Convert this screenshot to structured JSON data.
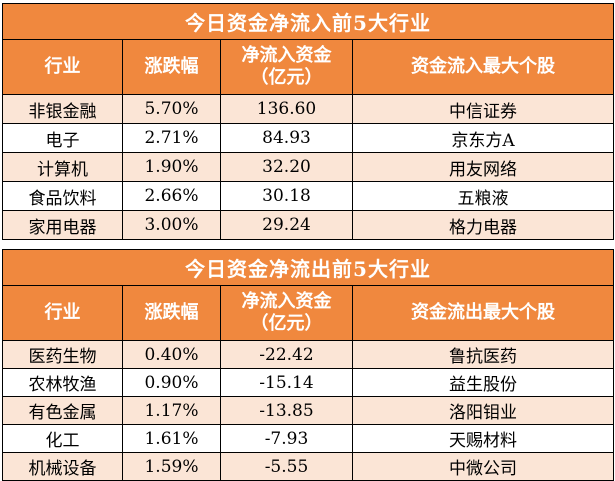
{
  "colors": {
    "header_orange": "#F0883E",
    "row_peach": "#FBE5D6",
    "row_white": "#FFFFFF",
    "border_black": "#000000",
    "header_text": "#FFFFFF",
    "data_text": "#000000"
  },
  "chart_data": [
    {
      "type": "table",
      "title": "今日资金净流入前5大行业",
      "header": {
        "industry": "行业",
        "change": "涨跌幅",
        "net_line1": "净流入资金",
        "net_line2": "（亿元）",
        "stock": "资金流入最大个股"
      },
      "columns": [
        "行业",
        "涨跌幅",
        "净流入资金（亿元）",
        "资金流入最大个股"
      ],
      "rows": [
        [
          "非银金融",
          "5.70%",
          "136.60",
          "中信证券"
        ],
        [
          "电子",
          "2.71%",
          "84.93",
          "京东方A"
        ],
        [
          "计算机",
          "1.90%",
          "32.20",
          "用友网络"
        ],
        [
          "食品饮料",
          "2.66%",
          "30.18",
          "五粮液"
        ],
        [
          "家用电器",
          "3.00%",
          "29.24",
          "格力电器"
        ]
      ]
    },
    {
      "type": "table",
      "title": "今日资金净流出前5大行业",
      "header": {
        "industry": "行业",
        "change": "涨跌幅",
        "net_line1": "净流入资金",
        "net_line2": "（亿元）",
        "stock": "资金流出最大个股"
      },
      "columns": [
        "行业",
        "涨跌幅",
        "净流入资金（亿元）",
        "资金流出最大个股"
      ],
      "rows": [
        [
          "医药生物",
          "0.40%",
          "-22.42",
          "鲁抗医药"
        ],
        [
          "农林牧渔",
          "0.90%",
          "-15.14",
          "益生股份"
        ],
        [
          "有色金属",
          "1.17%",
          "-13.85",
          "洛阳钼业"
        ],
        [
          "化工",
          "1.61%",
          "-7.93",
          "天赐材料"
        ],
        [
          "机械设备",
          "1.59%",
          "-5.55",
          "中微公司"
        ]
      ]
    }
  ]
}
